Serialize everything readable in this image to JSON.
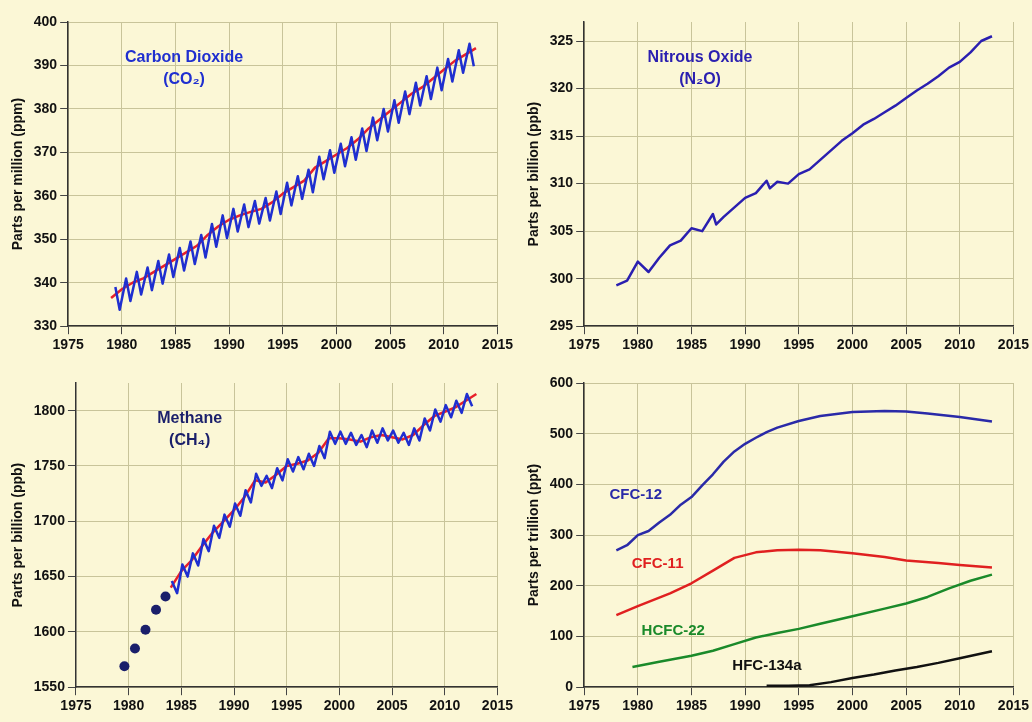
{
  "chart_data": [
    {
      "type": "line",
      "title": "Carbon Dioxide (CO₂)",
      "ylabel": "Parts per million (ppm)",
      "xlim": [
        1975,
        2015
      ],
      "xticks": [
        1975,
        1980,
        1985,
        1990,
        1995,
        2000,
        2005,
        2010,
        2015
      ],
      "ylim": [
        330,
        400
      ],
      "yticks": [
        330,
        340,
        350,
        360,
        370,
        380,
        390,
        400
      ],
      "grid": true,
      "series": [
        {
          "color": "#1f2fd0",
          "x": [
            1979.4,
            1979.8,
            1980.4,
            1980.8,
            1981.4,
            1981.8,
            1982.4,
            1982.8,
            1983.4,
            1983.8,
            1984.4,
            1984.8,
            1985.4,
            1985.8,
            1986.4,
            1986.8,
            1987.4,
            1987.8,
            1988.4,
            1988.8,
            1989.4,
            1989.8,
            1990.4,
            1990.8,
            1991.4,
            1991.8,
            1992.4,
            1992.8,
            1993.4,
            1993.8,
            1994.4,
            1994.8,
            1995.4,
            1995.8,
            1996.4,
            1996.8,
            1997.4,
            1997.8,
            1998.4,
            1998.8,
            1999.4,
            1999.8,
            2000.4,
            2000.8,
            2001.4,
            2001.8,
            2002.4,
            2002.8,
            2003.4,
            2003.8,
            2004.4,
            2004.8,
            2005.4,
            2005.8,
            2006.4,
            2006.8,
            2007.4,
            2007.8,
            2008.4,
            2008.8,
            2009.4,
            2009.8,
            2010.4,
            2010.8,
            2011.4,
            2011.8,
            2012.4,
            2012.8
          ],
          "values": [
            339,
            333.8,
            341,
            335.8,
            342.5,
            337.3,
            343.5,
            338.3,
            345,
            339.8,
            346.5,
            341.3,
            348,
            342.8,
            349.5,
            344.3,
            351,
            345.8,
            353.5,
            348.3,
            355.5,
            350.3,
            357,
            351.8,
            358,
            352.8,
            358.8,
            353.6,
            359.5,
            354.3,
            361,
            355.8,
            363,
            357.8,
            364.5,
            359.3,
            366,
            360.8,
            369,
            363.8,
            370.5,
            365.3,
            372,
            366.8,
            373.5,
            368.3,
            375.5,
            370.3,
            378,
            372.8,
            380,
            374.8,
            382,
            376.8,
            384,
            378.8,
            386,
            380.8,
            387.5,
            382.3,
            389.5,
            384.3,
            391.5,
            386.3,
            393.5,
            388.3,
            395,
            389.8
          ]
        },
        {
          "color": "#e8202a",
          "x": [
            1979,
            1980,
            1981,
            1982,
            1983,
            1984,
            1985,
            1986,
            1987,
            1988,
            1989,
            1990,
            1991,
            1992,
            1993,
            1994,
            1995,
            1996,
            1997,
            1998,
            1999,
            2000,
            2001,
            2002,
            2003,
            2004,
            2005,
            2006,
            2007,
            2008,
            2009,
            2010,
            2011,
            2012,
            2013
          ],
          "values": [
            336.5,
            338.5,
            340,
            341,
            342.5,
            344,
            345.5,
            347,
            348.5,
            351,
            353,
            354.5,
            355.5,
            356.3,
            357,
            358.5,
            360.5,
            362,
            363.5,
            366.5,
            368,
            369.5,
            371,
            373,
            375.5,
            377.5,
            379.5,
            381.5,
            383.5,
            385,
            387,
            389,
            391,
            392.5,
            394
          ]
        }
      ]
    },
    {
      "type": "line",
      "title": "Nitrous Oxide (N₂O)",
      "ylabel": "Parts per billion (ppb)",
      "xlim": [
        1975,
        2015
      ],
      "xticks": [
        1975,
        1980,
        1985,
        1990,
        1995,
        2000,
        2005,
        2010,
        2015
      ],
      "ylim": [
        295,
        327
      ],
      "yticks": [
        295,
        300,
        305,
        310,
        315,
        320,
        325
      ],
      "grid": true,
      "series": [
        {
          "color": "#2a1fb0",
          "x": [
            1978,
            1979,
            1980,
            1981,
            1982,
            1983,
            1984,
            1985,
            1986,
            1987,
            1987.3,
            1988,
            1989,
            1990,
            1991,
            1992,
            1992.3,
            1993,
            1994,
            1995,
            1996,
            1997,
            1998,
            1999,
            2000,
            2001,
            2002,
            2003,
            2004,
            2005,
            2006,
            2007,
            2008,
            2009,
            2010,
            2011,
            2012,
            2013
          ],
          "values": [
            299.3,
            299.8,
            301.8,
            300.7,
            302.2,
            303.5,
            304,
            305.3,
            305,
            306.8,
            305.7,
            306.5,
            307.5,
            308.5,
            309,
            310.3,
            309.5,
            310.2,
            310,
            311,
            311.5,
            312.5,
            313.5,
            314.5,
            315.3,
            316.2,
            316.8,
            317.5,
            318.2,
            319,
            319.8,
            320.5,
            321.3,
            322.2,
            322.8,
            323.8,
            325,
            325.5
          ]
        }
      ]
    },
    {
      "type": "line",
      "title": "Methane (CH₄)",
      "ylabel": "Parts per billion (ppb)",
      "xlim": [
        1975,
        2015
      ],
      "xticks": [
        1975,
        1980,
        1985,
        1990,
        1995,
        2000,
        2005,
        2010,
        2015
      ],
      "ylim": [
        1550,
        1825
      ],
      "yticks": [
        1550,
        1600,
        1650,
        1700,
        1750,
        1800
      ],
      "grid": true,
      "series": [
        {
          "type": "scatter",
          "marker": "circle",
          "color": "#1a1f6b",
          "x": [
            1979.6,
            1980.6,
            1981.6,
            1982.6,
            1983.5
          ],
          "values": [
            1569,
            1585,
            1602,
            1620,
            1632
          ]
        },
        {
          "color": "#1f2fd0",
          "x": [
            1984.1,
            1984.6,
            1985.1,
            1985.6,
            1986.1,
            1986.6,
            1987.1,
            1987.6,
            1988.1,
            1988.6,
            1989.1,
            1989.6,
            1990.1,
            1990.6,
            1991.1,
            1991.6,
            1992.1,
            1992.6,
            1993.1,
            1993.6,
            1994.1,
            1994.6,
            1995.1,
            1995.6,
            1996.1,
            1996.6,
            1997.1,
            1997.6,
            1998.1,
            1998.6,
            1999.1,
            1999.6,
            2000.1,
            2000.6,
            2001.1,
            2001.6,
            2002.1,
            2002.6,
            2003.1,
            2003.6,
            2004.1,
            2004.6,
            2005.1,
            2005.6,
            2006.1,
            2006.6,
            2007.1,
            2007.6,
            2008.1,
            2008.6,
            2009.1,
            2009.6,
            2010.1,
            2010.6,
            2011.1,
            2011.6,
            2012.1,
            2012.6
          ],
          "values": [
            1646,
            1635,
            1661,
            1650,
            1671,
            1660,
            1684,
            1673,
            1696,
            1685,
            1706,
            1695,
            1716,
            1705,
            1728,
            1717,
            1743,
            1732,
            1741,
            1730,
            1748,
            1737,
            1756,
            1745,
            1758,
            1747,
            1761,
            1750,
            1768,
            1757,
            1781,
            1770,
            1781,
            1770,
            1780,
            1769,
            1778,
            1767,
            1782,
            1771,
            1784,
            1773,
            1782,
            1771,
            1780,
            1769,
            1784,
            1773,
            1793,
            1782,
            1801,
            1790,
            1805,
            1794,
            1809,
            1798,
            1815,
            1804
          ]
        },
        {
          "color": "#e8202a",
          "x": [
            1984,
            1985,
            1986,
            1987,
            1988,
            1989,
            1990,
            1991,
            1992,
            1993,
            1994,
            1995,
            1996,
            1997,
            1998,
            1999,
            2000,
            2001,
            2002,
            2003,
            2004,
            2005,
            2006,
            2007,
            2008,
            2009,
            2010,
            2011,
            2012,
            2013
          ],
          "values": [
            1640,
            1655,
            1665,
            1678,
            1690,
            1700,
            1710,
            1722,
            1737,
            1735,
            1742,
            1750,
            1752,
            1755,
            1762,
            1775,
            1775,
            1774,
            1772,
            1776,
            1778,
            1776,
            1774,
            1778,
            1787,
            1795,
            1799,
            1803,
            1809,
            1815
          ]
        }
      ]
    },
    {
      "type": "line",
      "ylabel": "Parts per trillion (ppt)",
      "xlim": [
        1975,
        2015
      ],
      "xticks": [
        1975,
        1980,
        1985,
        1990,
        1995,
        2000,
        2005,
        2010,
        2015
      ],
      "ylim": [
        0,
        600
      ],
      "yticks": [
        0,
        100,
        200,
        300,
        400,
        500,
        600
      ],
      "grid": true,
      "series": [
        {
          "name": "CFC-12",
          "color": "#2a2aa8",
          "x": [
            1978,
            1979,
            1980,
            1981,
            1982,
            1983,
            1984,
            1985,
            1986,
            1987,
            1988,
            1989,
            1990,
            1991,
            1992,
            1993,
            1995,
            1997,
            2000,
            2003,
            2005,
            2007,
            2010,
            2012,
            2013
          ],
          "values": [
            270,
            280,
            300,
            308,
            325,
            340,
            360,
            375,
            398,
            420,
            445,
            465,
            480,
            492,
            503,
            512,
            525,
            535,
            543,
            545,
            544,
            540,
            533,
            527,
            524
          ]
        },
        {
          "name": "CFC-11",
          "color": "#e02020",
          "x": [
            1978,
            1980,
            1983,
            1985,
            1987,
            1989,
            1991,
            1993,
            1995,
            1997,
            2000,
            2003,
            2005,
            2008,
            2010,
            2013
          ],
          "values": [
            142,
            160,
            185,
            205,
            230,
            255,
            266,
            270,
            271,
            270,
            264,
            257,
            250,
            245,
            241,
            236
          ]
        },
        {
          "name": "HCFC-22",
          "color": "#1a8a2a",
          "x": [
            1979.5,
            1982,
            1985,
            1987,
            1989,
            1991,
            1993,
            1995,
            1997,
            2000,
            2003,
            2005,
            2007,
            2009,
            2011,
            2013
          ],
          "values": [
            40,
            50,
            62,
            72,
            85,
            98,
            107,
            115,
            125,
            140,
            155,
            165,
            178,
            195,
            210,
            222
          ]
        },
        {
          "name": "HFC-134a",
          "color": "#111111",
          "x": [
            1992,
            1994,
            1996,
            1998,
            2000,
            2002,
            2004,
            2006,
            2008,
            2010,
            2013
          ],
          "values": [
            3,
            3,
            4,
            10,
            18,
            25,
            33,
            40,
            48,
            57,
            71
          ]
        }
      ]
    }
  ]
}
